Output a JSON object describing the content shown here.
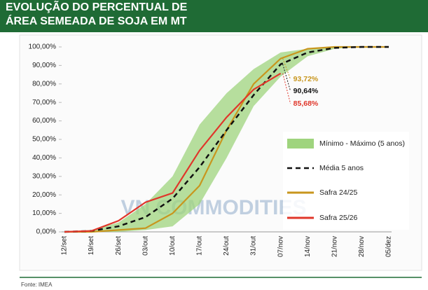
{
  "chart_data": {
    "type": "line",
    "title": "EVOLUÇÃO DO PERCENTUAL DE",
    "subtitle": "ÁREA SEMEADA DE SOJA EM MT",
    "watermark": "VN COMMODITIES",
    "source": "Fonte: IMEA",
    "categories": [
      "12/set",
      "19/set",
      "26/set",
      "03/out",
      "10/out",
      "17/out",
      "24/out",
      "31/out",
      "07/nov",
      "14/nov",
      "21/nov",
      "28/nov",
      "05/dez"
    ],
    "ylim": [
      0,
      100
    ],
    "yticks": [
      {
        "value": 0,
        "label": "0,00%"
      },
      {
        "value": 10,
        "label": "10,00%"
      },
      {
        "value": 20,
        "label": "20,00%"
      },
      {
        "value": 30,
        "label": "30,00%"
      },
      {
        "value": 40,
        "label": "40,00%"
      },
      {
        "value": 50,
        "label": "50,00%"
      },
      {
        "value": 60,
        "label": "60,00%"
      },
      {
        "value": 70,
        "label": "70,00%"
      },
      {
        "value": 80,
        "label": "80,00%"
      },
      {
        "value": 90,
        "label": "90,00%"
      },
      {
        "value": 100,
        "label": "100,00%"
      }
    ],
    "band": {
      "name": "Mínimo - Máximo (5 anos)",
      "color": "#9fd47e",
      "min": [
        0,
        0,
        0,
        1,
        3,
        15,
        40,
        68,
        84,
        95,
        99,
        100,
        100
      ],
      "max": [
        0,
        1,
        5,
        15,
        30,
        58,
        75,
        88,
        97,
        99,
        100,
        100,
        100
      ]
    },
    "series": [
      {
        "name": "Média 5 anos",
        "color": "#111111",
        "dash": true,
        "values": [
          0,
          0.5,
          3,
          8,
          18,
          35,
          55,
          74,
          90.64,
          97,
          99.5,
          100,
          100
        ],
        "value_labels": [
          null,
          null,
          null,
          null,
          null,
          null,
          null,
          null,
          "90,64%",
          null,
          null,
          null,
          null
        ]
      },
      {
        "name": "Safra 24/25",
        "color": "#c8961e",
        "dash": false,
        "values": [
          0,
          0,
          1,
          2,
          10,
          25,
          55,
          80,
          93.72,
          99,
          100,
          100,
          100
        ],
        "value_labels": [
          null,
          null,
          null,
          null,
          null,
          null,
          null,
          null,
          "93,72%",
          null,
          null,
          null,
          null
        ]
      },
      {
        "name": "Safra 25/26",
        "color": "#e0362a",
        "dash": false,
        "values": [
          0,
          0.5,
          6,
          16,
          21,
          44,
          62,
          77,
          85.68,
          null,
          null,
          null,
          null
        ],
        "value_labels": [
          null,
          null,
          null,
          null,
          null,
          null,
          null,
          null,
          "85,68%",
          null,
          null,
          null,
          null
        ]
      }
    ]
  }
}
